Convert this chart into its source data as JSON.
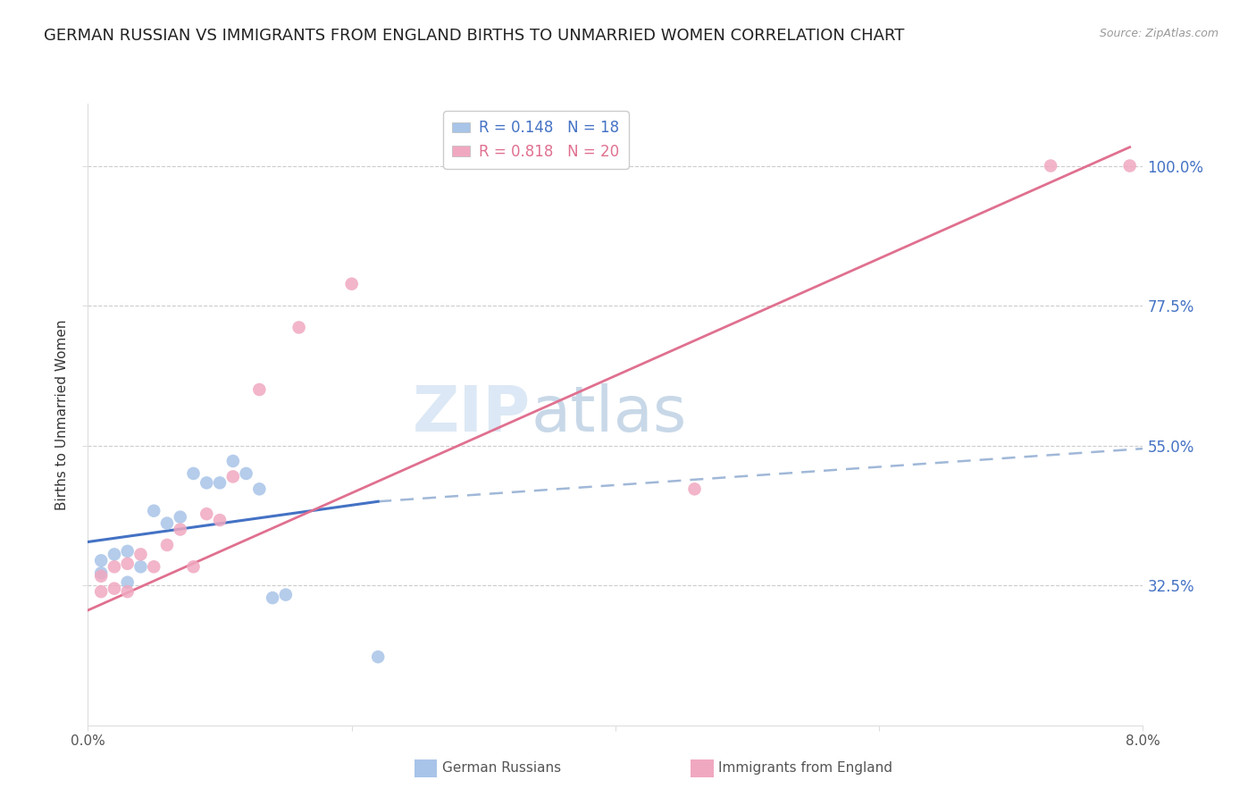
{
  "title": "GERMAN RUSSIAN VS IMMIGRANTS FROM ENGLAND BIRTHS TO UNMARRIED WOMEN CORRELATION CHART",
  "source": "Source: ZipAtlas.com",
  "ylabel": "Births to Unmarried Women",
  "y_ticks": [
    0.325,
    0.55,
    0.775,
    1.0
  ],
  "y_tick_labels": [
    "32.5%",
    "55.0%",
    "77.5%",
    "100.0%"
  ],
  "x_min": 0.0,
  "x_max": 0.08,
  "y_min": 0.1,
  "y_max": 1.1,
  "watermark_top": "ZIP",
  "watermark_bottom": "atlas",
  "legend_entries": [
    {
      "label": "R = 0.148   N = 18",
      "color": "#4472c4"
    },
    {
      "label": "R = 0.818   N = 20",
      "color": "#e07090"
    }
  ],
  "legend_label_bottom": [
    "German Russians",
    "Immigrants from England"
  ],
  "german_russian_points": [
    [
      0.001,
      0.365
    ],
    [
      0.001,
      0.345
    ],
    [
      0.002,
      0.375
    ],
    [
      0.003,
      0.38
    ],
    [
      0.003,
      0.33
    ],
    [
      0.004,
      0.355
    ],
    [
      0.005,
      0.445
    ],
    [
      0.006,
      0.425
    ],
    [
      0.007,
      0.435
    ],
    [
      0.008,
      0.505
    ],
    [
      0.009,
      0.49
    ],
    [
      0.01,
      0.49
    ],
    [
      0.011,
      0.525
    ],
    [
      0.012,
      0.505
    ],
    [
      0.013,
      0.48
    ],
    [
      0.014,
      0.305
    ],
    [
      0.015,
      0.31
    ],
    [
      0.022,
      0.21
    ]
  ],
  "england_points": [
    [
      0.001,
      0.34
    ],
    [
      0.001,
      0.315
    ],
    [
      0.002,
      0.355
    ],
    [
      0.002,
      0.32
    ],
    [
      0.003,
      0.315
    ],
    [
      0.003,
      0.36
    ],
    [
      0.004,
      0.375
    ],
    [
      0.005,
      0.355
    ],
    [
      0.006,
      0.39
    ],
    [
      0.007,
      0.415
    ],
    [
      0.008,
      0.355
    ],
    [
      0.009,
      0.44
    ],
    [
      0.01,
      0.43
    ],
    [
      0.011,
      0.5
    ],
    [
      0.013,
      0.64
    ],
    [
      0.016,
      0.74
    ],
    [
      0.02,
      0.81
    ],
    [
      0.046,
      0.48
    ],
    [
      0.073,
      1.0
    ],
    [
      0.079,
      1.0
    ]
  ],
  "gr_line": {
    "x0": 0.0,
    "y0": 0.395,
    "x1": 0.022,
    "y1": 0.46
  },
  "eng_line": {
    "x0": 0.0,
    "y0": 0.285,
    "x1": 0.079,
    "y1": 1.03
  },
  "dashed_line": {
    "x0": 0.022,
    "y0": 0.46,
    "x1": 0.08,
    "y1": 0.545
  },
  "gr_line_color": "#4472c4",
  "eng_line_color": "#e07090",
  "dashed_line_color": "#a0b8d8",
  "dot_size": 110,
  "gr_dot_color": "#a8c4e8",
  "eng_dot_color": "#f0a8c0",
  "title_fontsize": 13,
  "axis_label_fontsize": 11,
  "tick_fontsize": 11,
  "watermark_fontsize_zip": 52,
  "watermark_fontsize_atlas": 52,
  "watermark_color_zip": "#dce8f5",
  "watermark_color_atlas": "#c8d8e8",
  "background_color": "#ffffff",
  "grid_color": "#cccccc"
}
